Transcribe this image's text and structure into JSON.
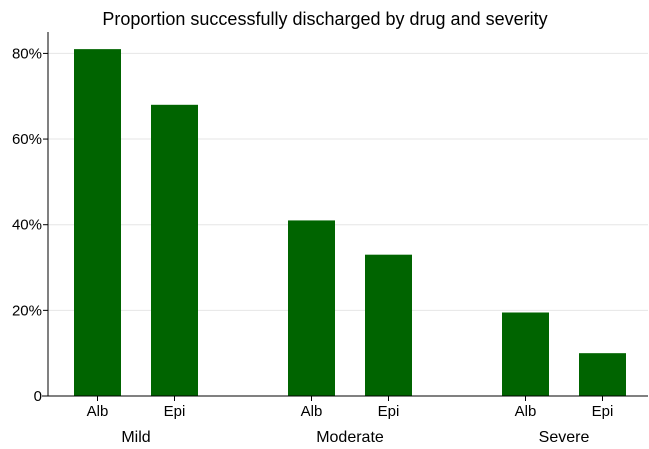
{
  "chart_data": {
    "type": "bar",
    "title": "Proportion successfully discharged by drug and severity",
    "groups": [
      {
        "name": "Mild",
        "bars": [
          {
            "label": "Alb",
            "value": 81
          },
          {
            "label": "Epi",
            "value": 68
          }
        ]
      },
      {
        "name": "Moderate",
        "bars": [
          {
            "label": "Alb",
            "value": 41
          },
          {
            "label": "Epi",
            "value": 33
          }
        ]
      },
      {
        "name": "Severe",
        "bars": [
          {
            "label": "Alb",
            "value": 19.5
          },
          {
            "label": "Epi",
            "value": 10
          }
        ]
      }
    ],
    "ylim": [
      0,
      85
    ],
    "yticks": [
      {
        "value": 0,
        "label": "0"
      },
      {
        "value": 20,
        "label": "20%"
      },
      {
        "value": 40,
        "label": "40%"
      },
      {
        "value": 60,
        "label": "60%"
      },
      {
        "value": 80,
        "label": "80%"
      }
    ],
    "grid": true,
    "bar_color": "#006400",
    "grid_color": "#e6e6e6"
  }
}
